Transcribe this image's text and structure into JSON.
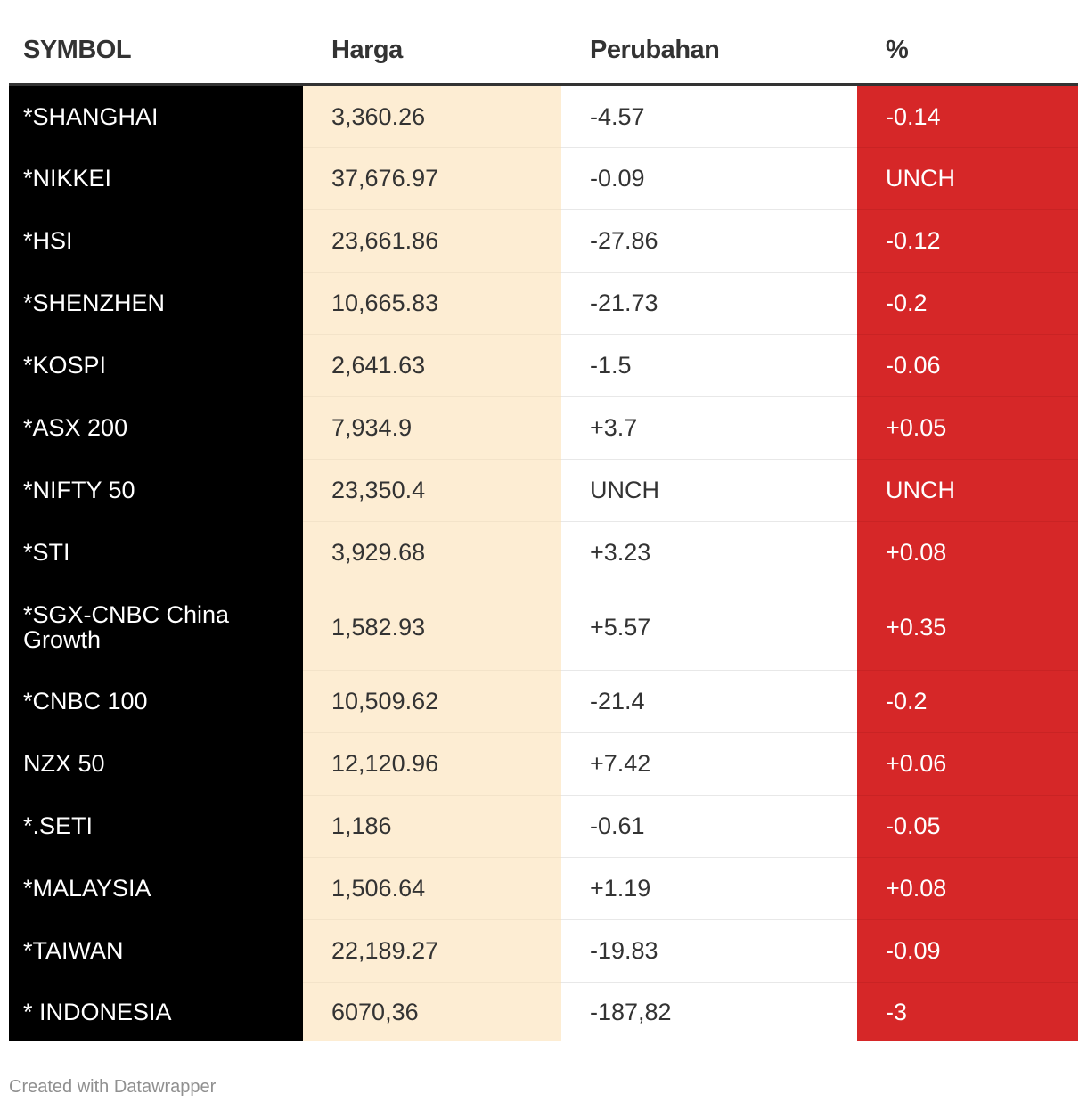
{
  "chart_data": {
    "type": "table",
    "columns": [
      "SYMBOL",
      "Harga",
      "Perubahan",
      "%"
    ],
    "rows": [
      [
        "*SHANGHAI",
        "3,360.26",
        "-4.57",
        "-0.14"
      ],
      [
        "*NIKKEI",
        "37,676.97",
        "-0.09",
        "UNCH"
      ],
      [
        "*HSI",
        "23,661.86",
        "-27.86",
        "-0.12"
      ],
      [
        "*SHENZHEN",
        "10,665.83",
        "-21.73",
        "-0.2"
      ],
      [
        "*KOSPI",
        "2,641.63",
        "-1.5",
        "-0.06"
      ],
      [
        "*ASX 200",
        "7,934.9",
        "+3.7",
        "+0.05"
      ],
      [
        "*NIFTY 50",
        "23,350.4",
        "UNCH",
        "UNCH"
      ],
      [
        "*STI",
        "3,929.68",
        "+3.23",
        "+0.08"
      ],
      [
        "*SGX-CNBC China Growth",
        "1,582.93",
        "+5.57",
        "+0.35"
      ],
      [
        "*CNBC 100",
        "10,509.62",
        "-21.4",
        "-0.2"
      ],
      [
        "NZX 50",
        "12,120.96",
        "+7.42",
        "+0.06"
      ],
      [
        "*.SETI",
        "1,186",
        "-0.61",
        "-0.05"
      ],
      [
        "*MALAYSIA",
        "1,506.64",
        "+1.19",
        "+0.08"
      ],
      [
        "*TAIWAN",
        "22,189.27",
        "-19.83",
        "-0.09"
      ],
      [
        "* INDONESIA",
        "6070,36",
        "-187,82",
        "-3"
      ]
    ],
    "column_colors": [
      "#000000",
      "#fdedd3",
      "#ffffff",
      "#d62728"
    ]
  },
  "footer": {
    "credit": "Created with Datawrapper"
  }
}
